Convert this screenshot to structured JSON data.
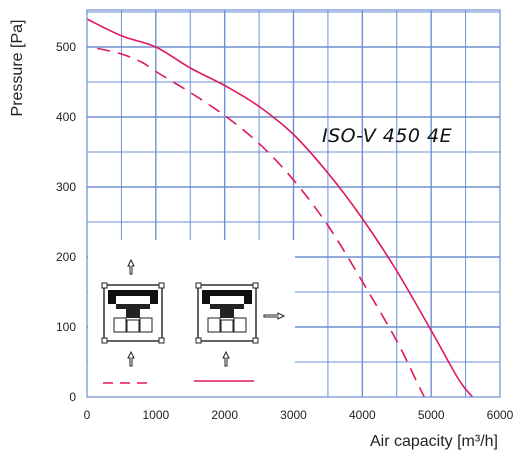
{
  "chart_data": {
    "type": "line",
    "title": "",
    "xlabel": "Air capacity [m³/h]",
    "ylabel": "Pressure [Pa]",
    "xlim": [
      0,
      6000
    ],
    "ylim": [
      0,
      550
    ],
    "x_ticks": [
      "0",
      "1000",
      "2000",
      "3000",
      "4000",
      "5000",
      "6000"
    ],
    "y_ticks": [
      "0",
      "100",
      "200",
      "300",
      "400",
      "500"
    ],
    "grid": true,
    "grid_color": "#6f8fd0",
    "annotation": "ISO-V 450 4E",
    "series": [
      {
        "style": "solid",
        "color": "#e0185a",
        "points": [
          [
            0,
            540
          ],
          [
            500,
            516
          ],
          [
            1000,
            500
          ],
          [
            1500,
            470
          ],
          [
            2000,
            445
          ],
          [
            2500,
            415
          ],
          [
            3000,
            375
          ],
          [
            3500,
            320
          ],
          [
            4000,
            255
          ],
          [
            4500,
            180
          ],
          [
            5000,
            95
          ],
          [
            5400,
            25
          ],
          [
            5600,
            0
          ]
        ]
      },
      {
        "style": "dashed",
        "color": "#e0185a",
        "points": [
          [
            150,
            498
          ],
          [
            500,
            490
          ],
          [
            800,
            478
          ],
          [
            1000,
            465
          ],
          [
            1500,
            435
          ],
          [
            2000,
            402
          ],
          [
            2500,
            362
          ],
          [
            3000,
            310
          ],
          [
            3500,
            245
          ],
          [
            4000,
            165
          ],
          [
            4500,
            80
          ],
          [
            4800,
            20
          ],
          [
            4900,
            0
          ]
        ]
      }
    ]
  },
  "legend": {
    "background": "#ffffff",
    "dashed_line_color": "#e0185a",
    "solid_line_color": "#e0185a"
  }
}
